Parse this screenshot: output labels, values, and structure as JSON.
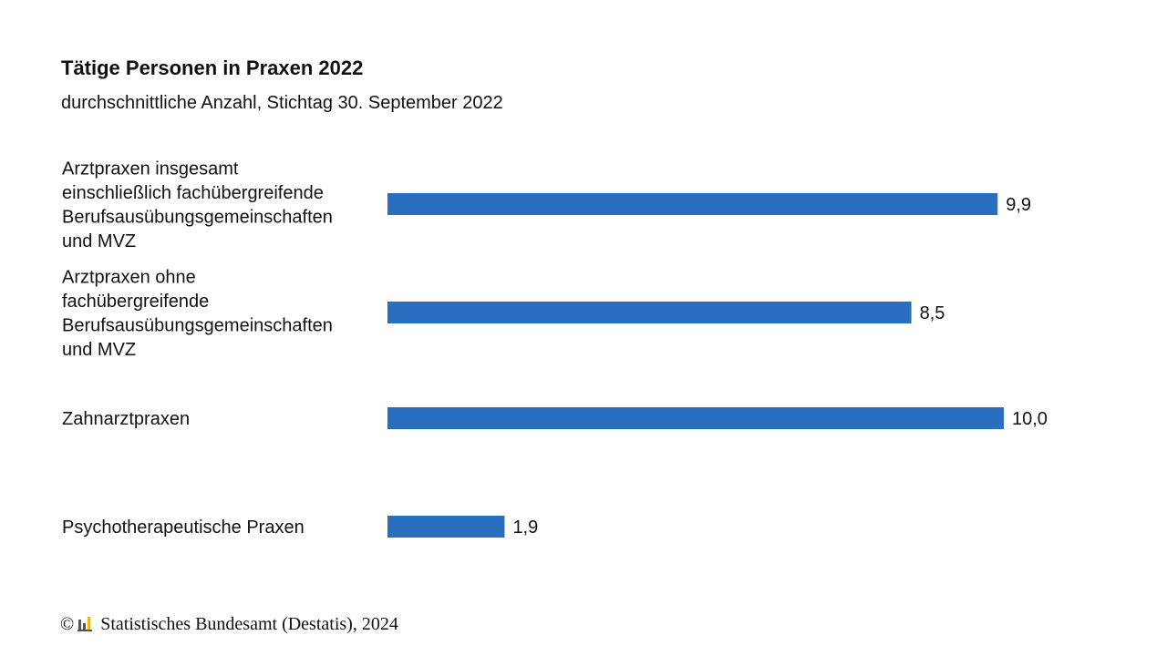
{
  "title": "Tätige Personen in Praxen 2022",
  "subtitle": "durchschnittliche Anzahl, Stichtag 30. September 2022",
  "footer": {
    "copyright_symbol": "©",
    "source": "Statistisches Bundesamt (Destatis), 2024"
  },
  "colors": {
    "bar": "#2a6ebf",
    "text": "#111111",
    "logo_dark": "#555555",
    "logo_accent": "#f2b705"
  },
  "chart_data": {
    "type": "bar",
    "orientation": "horizontal",
    "title": "Tätige Personen in Praxen 2022",
    "subtitle": "durchschnittliche Anzahl, Stichtag 30. September 2022",
    "categories": [
      [
        "Arztpraxen insgesamt",
        "einschließlich fachübergreifende",
        "Berufsausübungsgemeinschaften",
        "und MVZ"
      ],
      [
        "Arztpraxen ohne",
        "fachübergreifende",
        "Berufsausübungsgemeinschaften",
        "und MVZ"
      ],
      [
        "Zahnarztpraxen"
      ],
      [
        "Psychotherapeutische Praxen"
      ]
    ],
    "values": [
      9.9,
      8.5,
      10.0,
      1.9
    ],
    "value_labels": [
      "9,9",
      "8,5",
      "10,0",
      "1,9"
    ],
    "xlim": [
      0,
      10
    ],
    "grid": false,
    "legend": "none"
  }
}
